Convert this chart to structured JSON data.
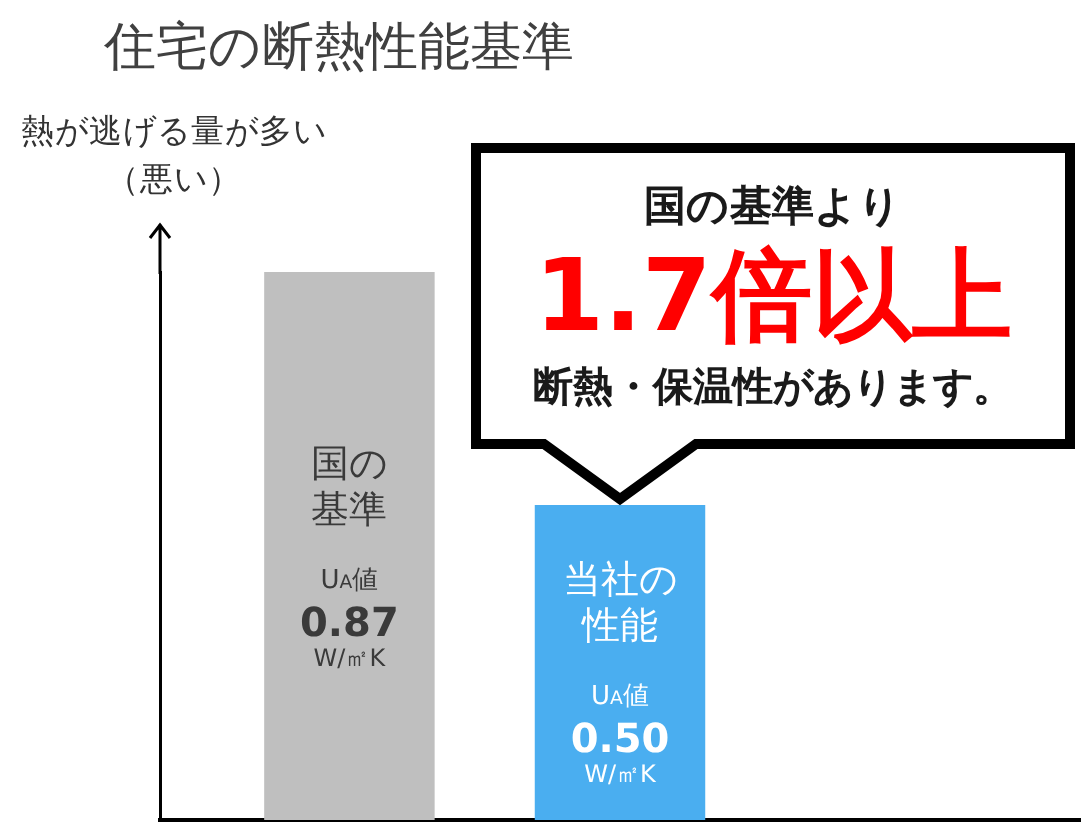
{
  "chart_data": {
    "type": "bar",
    "title": "住宅の断熱性能基準",
    "ylabel": "熱が逃げる量が多い（悪い）",
    "categories": [
      "国の基準",
      "当社の性能"
    ],
    "values": [
      0.87,
      0.5
    ],
    "colors": [
      "#bfbfbf",
      "#4aaef0"
    ],
    "value_labels": [
      "0.87",
      "0.50"
    ],
    "annotations": [
      "U$_{A}$値",
      "W/㎡K",
      "U$_{A}$値",
      "W/㎡K",
      "国の基準より",
      "1.7倍以上",
      "断熱・保温性があります。"
    ],
    "tick_labels": "x"
  }
}
